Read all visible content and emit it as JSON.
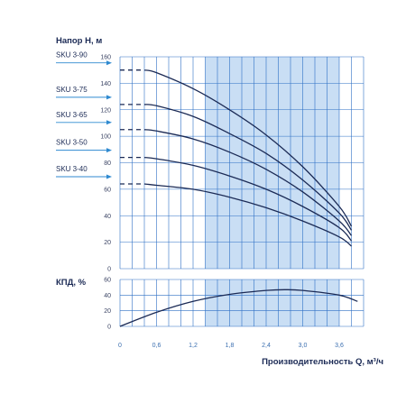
{
  "chart_data": [
    {
      "type": "line",
      "title": "Напор H, м",
      "xlabel": "Производительность Q, м³/ч",
      "ylabel": "Напор H, м",
      "xlim": [
        0,
        4.0
      ],
      "ylim": [
        0,
        160
      ],
      "y_ticks": [
        "0",
        "20",
        "40",
        "60",
        "80",
        "100",
        "120",
        "140",
        "160"
      ],
      "x_ticks": [
        "0",
        "0,6",
        "1,2",
        "1,8",
        "2,4",
        "3,0",
        "3,6"
      ],
      "highlight_range": [
        1.4,
        3.6
      ],
      "grid": true,
      "series": [
        {
          "name": "SKU 3-90",
          "dashed_x": [
            0,
            0.4
          ],
          "x": [
            0.4,
            0.6,
            1.2,
            1.8,
            2.4,
            3.0,
            3.6,
            3.8
          ],
          "y": [
            150,
            148,
            136,
            120,
            101,
            77,
            47,
            32
          ]
        },
        {
          "name": "SKU 3-75",
          "dashed_x": [
            0,
            0.4
          ],
          "x": [
            0.4,
            0.6,
            1.2,
            1.8,
            2.4,
            3.0,
            3.6,
            3.8
          ],
          "y": [
            124,
            123,
            115,
            102,
            87,
            67,
            42,
            29
          ]
        },
        {
          "name": "SKU 3-65",
          "dashed_x": [
            0,
            0.4
          ],
          "x": [
            0.4,
            0.6,
            1.2,
            1.8,
            2.4,
            3.0,
            3.6,
            3.8
          ],
          "y": [
            105,
            104,
            98,
            88,
            75,
            58,
            36,
            25
          ]
        },
        {
          "name": "SKU 3-50",
          "dashed_x": [
            0,
            0.4
          ],
          "x": [
            0.4,
            0.6,
            1.2,
            1.8,
            2.4,
            3.0,
            3.6,
            3.8
          ],
          "y": [
            84,
            83,
            78,
            70,
            60,
            47,
            31,
            21
          ]
        },
        {
          "name": "SKU 3-40",
          "dashed_x": [
            0,
            0.4
          ],
          "x": [
            0.4,
            0.6,
            1.2,
            1.8,
            2.4,
            3.0,
            3.6,
            3.8
          ],
          "y": [
            64,
            63,
            60,
            54,
            46,
            36,
            24,
            17
          ]
        }
      ]
    },
    {
      "type": "line",
      "title": "КПД, %",
      "xlabel": "Производительность Q, м³/ч",
      "ylabel": "КПД, %",
      "xlim": [
        0,
        4.0
      ],
      "ylim": [
        0,
        60
      ],
      "y_ticks": [
        "0",
        "20",
        "40",
        "60"
      ],
      "highlight_range": [
        1.4,
        3.6
      ],
      "grid": true,
      "series": [
        {
          "name": "",
          "x": [
            0,
            0.6,
            1.2,
            1.8,
            2.4,
            2.7,
            3.0,
            3.6,
            3.9
          ],
          "y": [
            0,
            18,
            32,
            41,
            46,
            47,
            46,
            40,
            32
          ]
        }
      ]
    }
  ],
  "colors": {
    "curve": "#1b2a55",
    "grid": "#2d6fc4",
    "highlight": "#c9def4",
    "sku_arrow": "#2f8ad0"
  }
}
